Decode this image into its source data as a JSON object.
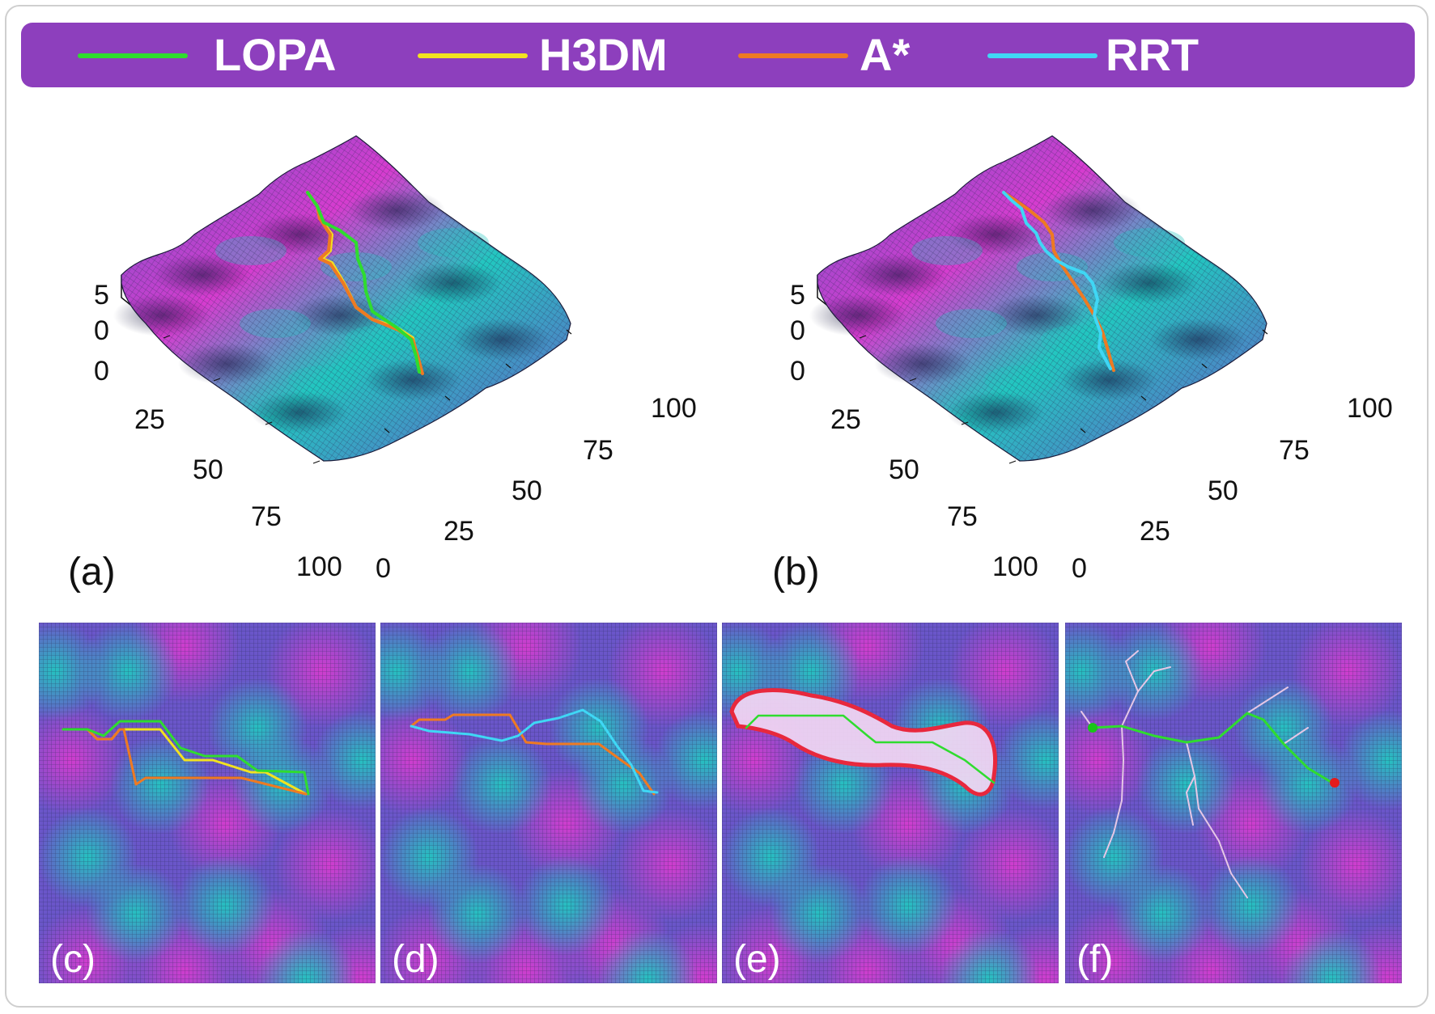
{
  "legend": {
    "items": [
      {
        "label": "LOPA",
        "color": "#2fdc2f"
      },
      {
        "label": "H3DM",
        "color": "#f2e21f"
      },
      {
        "label": "A*",
        "color": "#ee7a22"
      },
      {
        "label": "RRT",
        "color": "#3fd7f5"
      }
    ],
    "background": "#8d3fbd"
  },
  "panels": {
    "a": {
      "label": "(a)"
    },
    "b": {
      "label": "(b)"
    },
    "c": {
      "label": "(c)"
    },
    "d": {
      "label": "(d)"
    },
    "e": {
      "label": "(e)"
    },
    "f": {
      "label": "(f)"
    }
  },
  "axes": {
    "z_ticks": [
      "5",
      "0"
    ],
    "left_ticks": [
      "0",
      "25",
      "50",
      "75",
      "100"
    ],
    "right_ticks": [
      "0",
      "25",
      "50",
      "75",
      "100"
    ]
  },
  "colors": {
    "surface_low": "#22c7c0",
    "surface_mid": "#6a56c9",
    "surface_high": "#d63ccf",
    "mesh": "#2a2a55",
    "frontier": "#e8283d",
    "start": "#19c619",
    "goal": "#e31b1b"
  }
}
